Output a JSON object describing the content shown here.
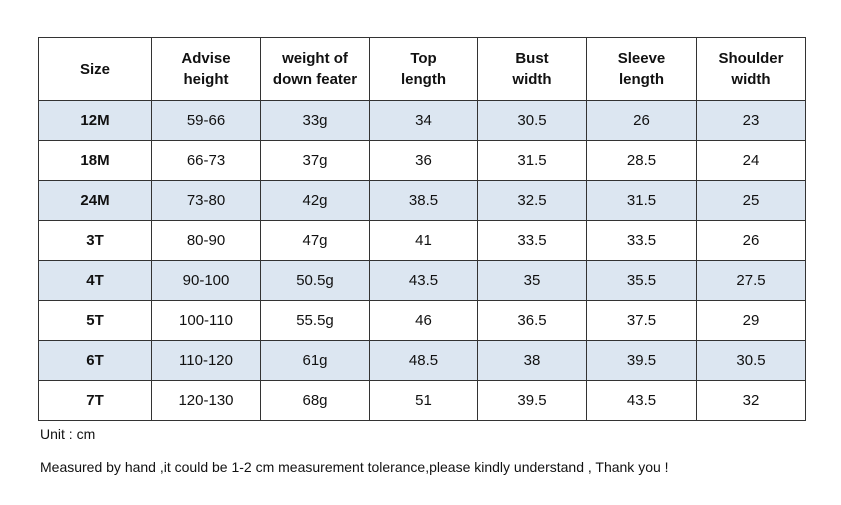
{
  "table": {
    "header": [
      [
        "Size"
      ],
      [
        "Advise",
        "height"
      ],
      [
        "weight of",
        "down feater"
      ],
      [
        "Top",
        "length"
      ],
      [
        "Bust",
        "width"
      ],
      [
        "Sleeve",
        "length"
      ],
      [
        "Shoulder",
        "width"
      ]
    ],
    "rows": [
      [
        "12M",
        "59-66",
        "33g",
        "34",
        "30.5",
        "26",
        "23"
      ],
      [
        "18M",
        "66-73",
        "37g",
        "36",
        "31.5",
        "28.5",
        "24"
      ],
      [
        "24M",
        "73-80",
        "42g",
        "38.5",
        "32.5",
        "31.5",
        "25"
      ],
      [
        "3T",
        "80-90",
        "47g",
        "41",
        "33.5",
        "33.5",
        "26"
      ],
      [
        "4T",
        "90-100",
        "50.5g",
        "43.5",
        "35",
        "35.5",
        "27.5"
      ],
      [
        "5T",
        "100-110",
        "55.5g",
        "46",
        "36.5",
        "37.5",
        "29"
      ],
      [
        "6T",
        "110-120",
        "61g",
        "48.5",
        "38",
        "39.5",
        "30.5"
      ],
      [
        "7T",
        "120-130",
        "68g",
        "51",
        "39.5",
        "43.5",
        "32"
      ]
    ]
  },
  "notes": {
    "unit": "Unit : cm",
    "tolerance": "Measured by hand ,it could be 1-2 cm measurement tolerance,please kindly understand , Thank you !"
  }
}
